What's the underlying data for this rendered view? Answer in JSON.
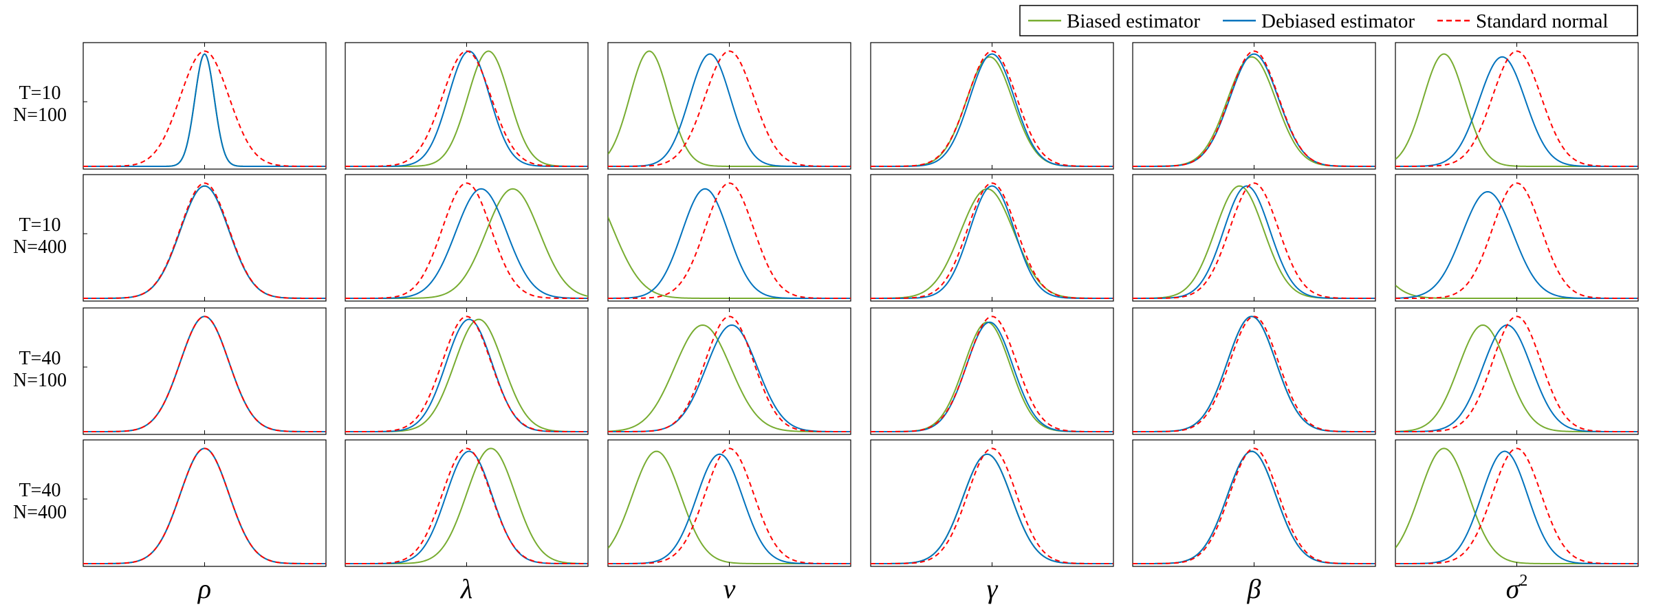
{
  "chart_data": {
    "type": "line",
    "title": "",
    "legend": {
      "placement": "top-right",
      "entries": [
        {
          "label": "Biased estimator",
          "color": "#77AC30",
          "dash": "solid"
        },
        {
          "label": "Debiased estimator",
          "color": "#0072BD",
          "dash": "solid"
        },
        {
          "label": "Standard normal",
          "color": "#FF0000",
          "dash": "dashed"
        }
      ]
    },
    "rows": [
      {
        "line1": "T=10",
        "line2": "N=100"
      },
      {
        "line1": "T=10",
        "line2": "N=400"
      },
      {
        "line1": "T=40",
        "line2": "N=100"
      },
      {
        "line1": "T=40",
        "line2": "N=400"
      }
    ],
    "columns": [
      {
        "base": "ρ",
        "sup": ""
      },
      {
        "base": "λ",
        "sup": ""
      },
      {
        "base": "ν",
        "sup": ""
      },
      {
        "base": "γ",
        "sup": ""
      },
      {
        "base": "β",
        "sup": ""
      },
      {
        "base": "σ",
        "sup": "2"
      }
    ],
    "xlim": [
      -5,
      5
    ],
    "ylim": [
      0,
      0.42
    ],
    "grid": false,
    "panels": [
      [
        {
          "biased": [
            0,
            0.4,
            0.39
          ],
          "debiased": [
            0,
            0.4,
            0.39
          ]
        },
        {
          "biased": [
            0.9,
            0.85,
            0.4
          ],
          "debiased": [
            0.1,
            0.85,
            0.4
          ]
        },
        {
          "biased": [
            -3.3,
            0.8,
            0.4
          ],
          "debiased": [
            -0.8,
            0.85,
            0.39
          ]
        },
        {
          "biased": [
            -0.1,
            0.95,
            0.38
          ],
          "debiased": [
            0,
            0.92,
            0.39
          ]
        },
        {
          "biased": [
            -0.1,
            1.0,
            0.38
          ],
          "debiased": [
            0,
            1.0,
            0.39
          ]
        },
        {
          "biased": [
            -3.0,
            0.85,
            0.39
          ],
          "debiased": [
            -0.6,
            0.95,
            0.38
          ]
        }
      ],
      [
        {
          "biased": [
            0,
            1.0,
            0.39
          ],
          "debiased": [
            0,
            1.0,
            0.39
          ]
        },
        {
          "biased": [
            1.9,
            1.1,
            0.38
          ],
          "debiased": [
            0.6,
            1.05,
            0.38
          ]
        },
        {
          "biased": [
            -6.0,
            1.2,
            0.4
          ],
          "debiased": [
            -1.0,
            0.95,
            0.38
          ]
        },
        {
          "biased": [
            -0.2,
            1.1,
            0.38
          ],
          "debiased": [
            0,
            0.92,
            0.39
          ]
        },
        {
          "biased": [
            -0.6,
            1.0,
            0.39
          ],
          "debiased": [
            -0.3,
            0.95,
            0.39
          ]
        },
        {
          "biased": [
            -7.5,
            1.2,
            0.4
          ],
          "debiased": [
            -1.2,
            1.05,
            0.37
          ]
        }
      ],
      [
        {
          "biased": [
            0,
            1.0,
            0.4
          ],
          "debiased": [
            0,
            1.0,
            0.4
          ]
        },
        {
          "biased": [
            0.5,
            1.0,
            0.39
          ],
          "debiased": [
            0.1,
            0.95,
            0.39
          ]
        },
        {
          "biased": [
            -1.1,
            1.15,
            0.37
          ],
          "debiased": [
            0.1,
            1.05,
            0.37
          ]
        },
        {
          "biased": [
            -0.2,
            0.95,
            0.38
          ],
          "debiased": [
            -0.1,
            0.95,
            0.38
          ]
        },
        {
          "biased": [
            -0.1,
            1.0,
            0.4
          ],
          "debiased": [
            -0.1,
            1.0,
            0.4
          ]
        },
        {
          "biased": [
            -1.4,
            1.0,
            0.37
          ],
          "debiased": [
            -0.4,
            1.0,
            0.37
          ]
        }
      ],
      [
        {
          "biased": [
            0,
            1.0,
            0.4
          ],
          "debiased": [
            0,
            1.0,
            0.4
          ]
        },
        {
          "biased": [
            1.0,
            1.0,
            0.4
          ],
          "debiased": [
            0.1,
            0.95,
            0.39
          ]
        },
        {
          "biased": [
            -3.0,
            1.0,
            0.39
          ],
          "debiased": [
            -0.4,
            0.95,
            0.38
          ]
        },
        {
          "biased": [
            -0.2,
            1.0,
            0.38
          ],
          "debiased": [
            -0.2,
            1.0,
            0.38
          ]
        },
        {
          "biased": [
            -0.1,
            1.0,
            0.39
          ],
          "debiased": [
            -0.1,
            1.0,
            0.39
          ]
        },
        {
          "biased": [
            -3.0,
            1.0,
            0.4
          ],
          "debiased": [
            -0.5,
            0.95,
            0.39
          ]
        }
      ]
    ]
  }
}
